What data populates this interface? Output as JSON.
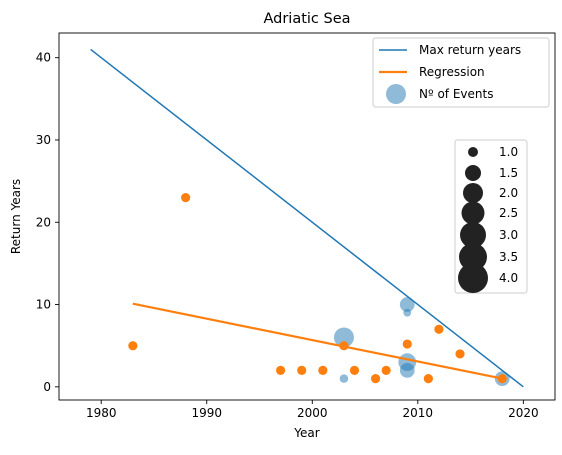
{
  "chart_data": {
    "type": "scatter",
    "title": "Adriatic Sea",
    "xlabel": "Year",
    "ylabel": "Return Years",
    "xlim": [
      1976,
      2023
    ],
    "ylim": [
      -1.6,
      43
    ],
    "x_ticks": [
      1980,
      1990,
      2000,
      2010,
      2020
    ],
    "y_ticks": [
      0,
      10,
      20,
      30,
      40
    ],
    "grid": false,
    "colors": {
      "max_line": "#1f77b4",
      "regression": "#ff7f0e",
      "events": "#1f77b4",
      "points": "#ff7f0e",
      "size_legend": "#222222"
    },
    "max_return_line": {
      "name": "Max return years",
      "x": [
        1979,
        2020
      ],
      "y": [
        41,
        0
      ]
    },
    "regression_line": {
      "name": "Regression",
      "x": [
        1983,
        2018
      ],
      "y": [
        10.1,
        1.0
      ]
    },
    "events": {
      "name": "Nº of Events",
      "points": [
        {
          "x": 2003,
          "y": 6.0,
          "count": 3.3
        },
        {
          "x": 2009,
          "y": 10.0,
          "count": 1.8
        },
        {
          "x": 2009,
          "y": 9.0,
          "count": 0.5
        },
        {
          "x": 2009,
          "y": 3.0,
          "count": 2.6
        },
        {
          "x": 2009,
          "y": 2.0,
          "count": 1.8
        },
        {
          "x": 2018,
          "y": 1.0,
          "count": 1.8
        },
        {
          "x": 2003,
          "y": 1.0,
          "count": 0.6
        }
      ]
    },
    "return_points": [
      {
        "x": 1983,
        "y": 5
      },
      {
        "x": 1988,
        "y": 23
      },
      {
        "x": 1997,
        "y": 2
      },
      {
        "x": 1999,
        "y": 2
      },
      {
        "x": 2001,
        "y": 2
      },
      {
        "x": 2003,
        "y": 5
      },
      {
        "x": 2004,
        "y": 2
      },
      {
        "x": 2006,
        "y": 1
      },
      {
        "x": 2007,
        "y": 2
      },
      {
        "x": 2009,
        "y": 5.2
      },
      {
        "x": 2011,
        "y": 1
      },
      {
        "x": 2012,
        "y": 7
      },
      {
        "x": 2014,
        "y": 4
      },
      {
        "x": 2018,
        "y": 1
      }
    ],
    "legend": {
      "placement": "upper-right",
      "entries": [
        "Max return years",
        "Regression",
        "Nº of Events"
      ]
    },
    "size_legend": {
      "placement": "center-right",
      "labels": [
        "1.0",
        "1.5",
        "2.0",
        "2.5",
        "3.0",
        "3.5",
        "4.0"
      ],
      "values": [
        1.0,
        1.5,
        2.0,
        2.5,
        3.0,
        3.5,
        4.0
      ]
    }
  }
}
